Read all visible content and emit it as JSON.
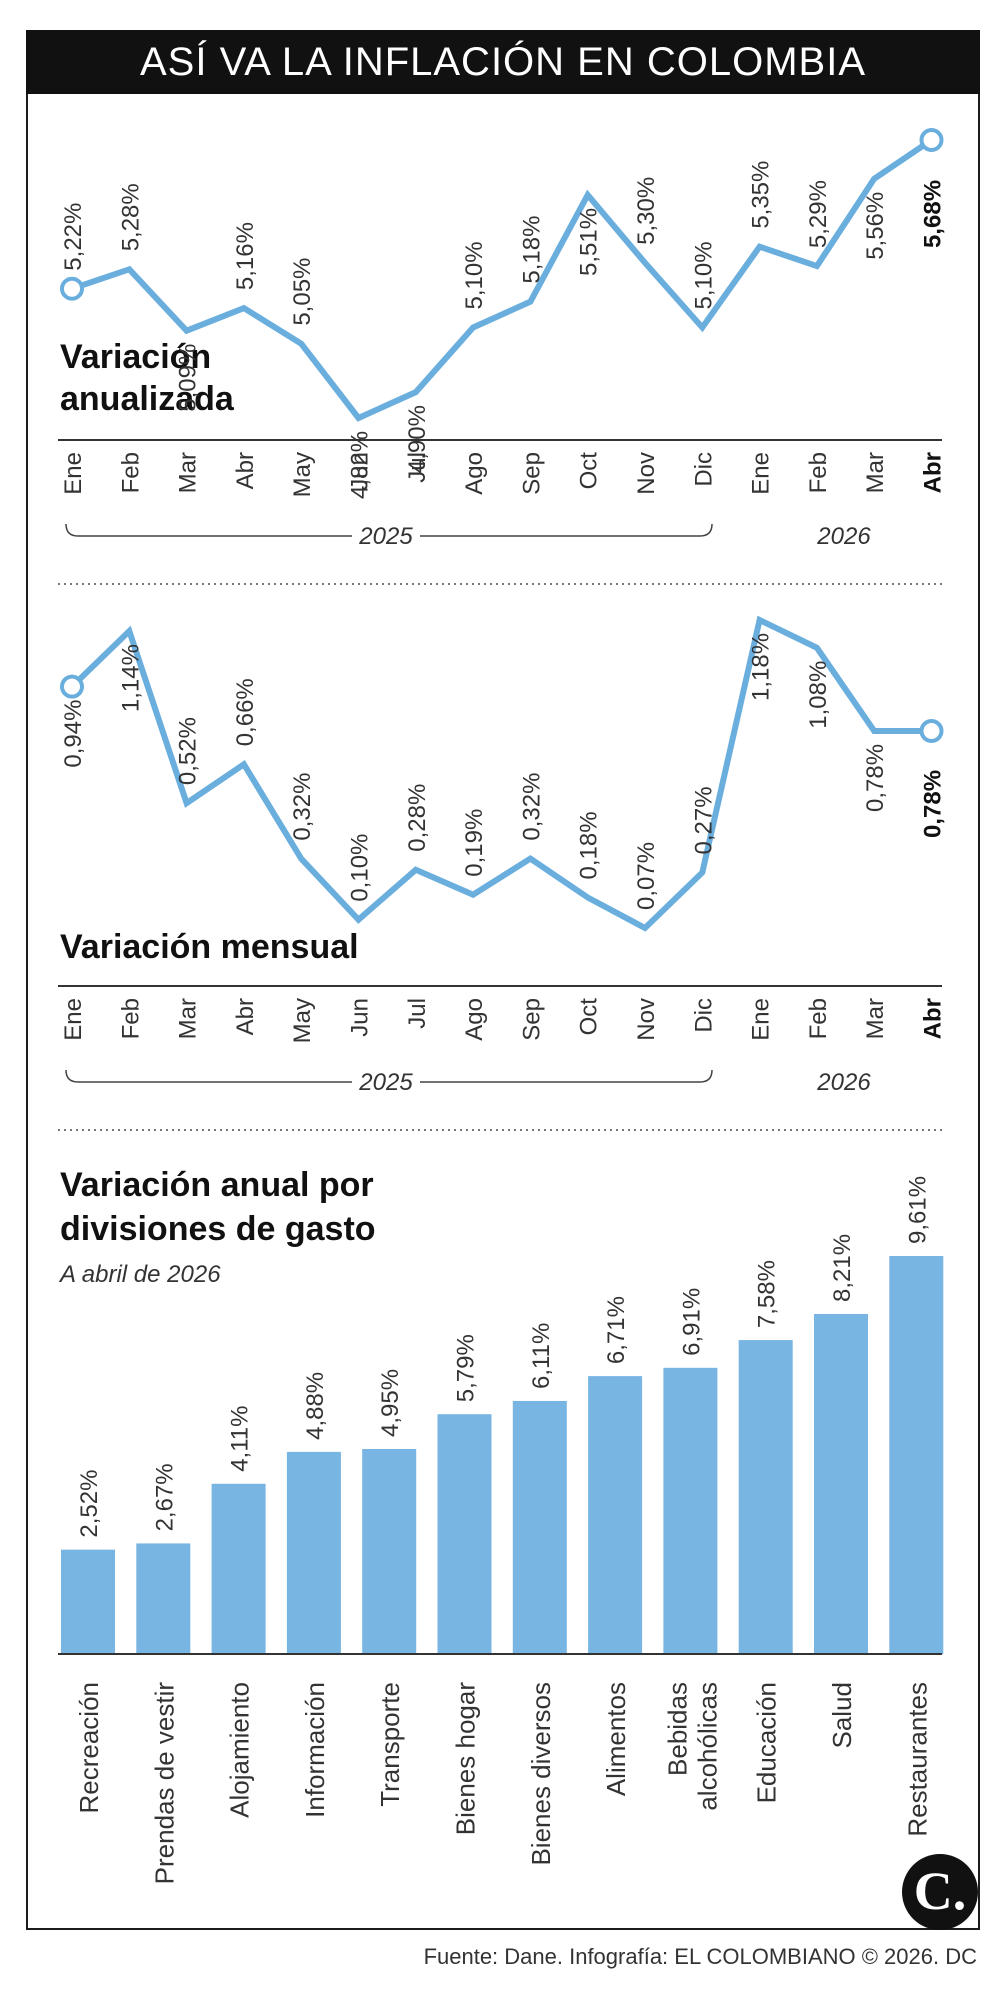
{
  "title": "ASÍ VA LA INFLACIÓN EN COLOMBIA",
  "footer": "Fuente: Dane. Infografía: EL COLOMBIANO © 2026. DC",
  "logo_text": "C.",
  "colors": {
    "line": "#6aaede",
    "bar": "#78b5e2",
    "title_bg": "#111111"
  },
  "chart_data": [
    {
      "type": "line",
      "title": "Variación anualizada",
      "categories": [
        "Ene",
        "Feb",
        "Mar",
        "Abr",
        "May",
        "Jun",
        "Jul",
        "Ago",
        "Sep",
        "Oct",
        "Nov",
        "Dic",
        "Ene",
        "Feb",
        "Mar",
        "Abr"
      ],
      "labels": [
        "5,22%",
        "5,28%",
        "5,09%",
        "5,16%",
        "5,05%",
        "4,82%",
        "4,90%",
        "5,10%",
        "5,18%",
        "5,51%",
        "5,30%",
        "5,10%",
        "5,35%",
        "5,29%",
        "5,56%",
        "5,68%"
      ],
      "values": [
        5.22,
        5.28,
        5.09,
        5.16,
        5.05,
        4.82,
        4.9,
        5.1,
        5.18,
        5.51,
        5.3,
        5.1,
        5.35,
        5.29,
        5.56,
        5.68
      ],
      "year_groups": [
        "2025",
        "2026"
      ]
    },
    {
      "type": "line",
      "title": "Variación mensual",
      "categories": [
        "Ene",
        "Feb",
        "Mar",
        "Abr",
        "May",
        "Jun",
        "Jul",
        "Ago",
        "Sep",
        "Oct",
        "Nov",
        "Dic",
        "Ene",
        "Feb",
        "Mar",
        "Abr"
      ],
      "labels": [
        "0,94%",
        "1,14%",
        "0,52%",
        "0,66%",
        "0,32%",
        "0,10%",
        "0,28%",
        "0,19%",
        "0,32%",
        "0,18%",
        "0,07%",
        "0,27%",
        "1,18%",
        "1,08%",
        "0,78%",
        "0,78%"
      ],
      "values": [
        0.94,
        1.14,
        0.52,
        0.66,
        0.32,
        0.1,
        0.28,
        0.19,
        0.32,
        0.18,
        0.07,
        0.27,
        1.18,
        1.08,
        0.78,
        0.78
      ],
      "year_groups": [
        "2025",
        "2026"
      ]
    },
    {
      "type": "bar",
      "title": "Variación anual por divisiones de gasto",
      "subtitle": "A abril de 2026",
      "categories": [
        "Recreación",
        "Prendas de vestir",
        "Alojamiento",
        "Información",
        "Transporte",
        "Bienes hogar",
        "Bienes diversos",
        "Alimentos",
        "Bebidas alcohólicas",
        "Educación",
        "Salud",
        "Restaurantes"
      ],
      "labels": [
        "2,52%",
        "2,67%",
        "4,11%",
        "4,88%",
        "4,95%",
        "5,79%",
        "6,11%",
        "6,71%",
        "6,91%",
        "7,58%",
        "8,21%",
        "9,61%"
      ],
      "values": [
        2.52,
        2.67,
        4.11,
        4.88,
        4.95,
        5.79,
        6.11,
        6.71,
        6.91,
        7.58,
        8.21,
        9.61
      ]
    }
  ]
}
